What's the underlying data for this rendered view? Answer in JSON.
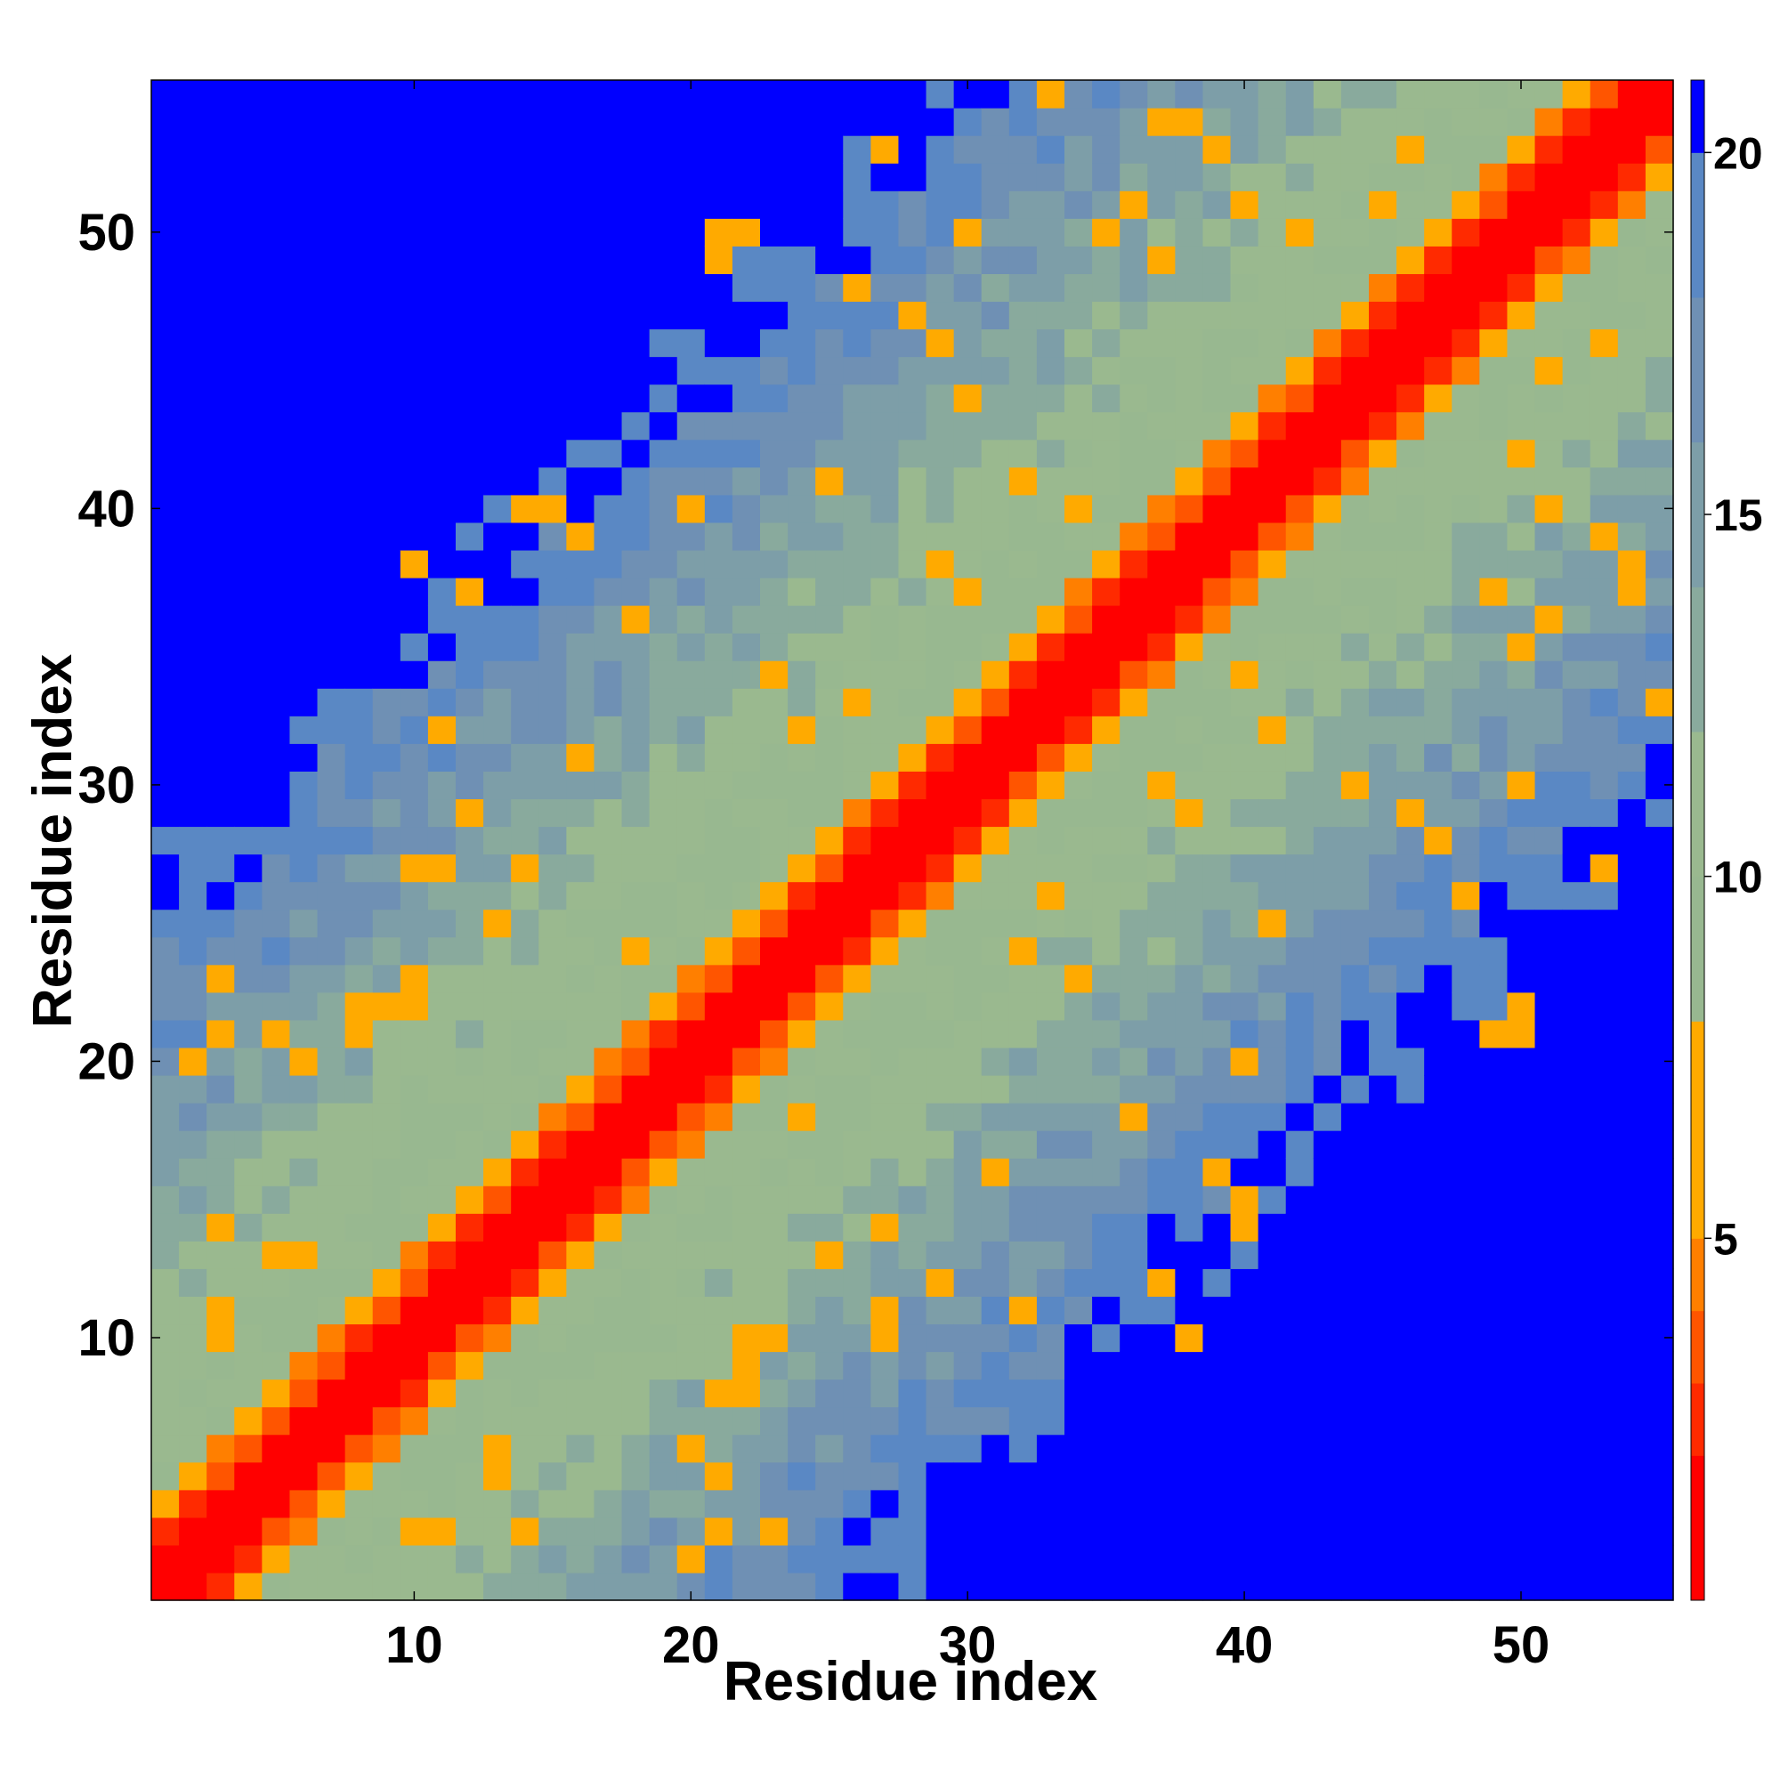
{
  "chart_data": {
    "type": "heatmap",
    "title": "",
    "xlabel": "Residue index",
    "ylabel": "Residue index",
    "n_residues": 55,
    "xlim": [
      0.5,
      55.5
    ],
    "ylim": [
      0.5,
      55.5
    ],
    "x_ticks": [
      10,
      20,
      30,
      40,
      50
    ],
    "y_ticks": [
      10,
      20,
      30,
      40,
      50
    ],
    "x_tick_labels": [
      "10",
      "20",
      "30",
      "40",
      "50"
    ],
    "y_tick_labels": [
      "10",
      "20",
      "30",
      "40",
      "50"
    ],
    "value_note": "Inter-residue distance map; values clipped at 21 (blue = 21 and above). Values estimated from the color scale.",
    "colorbar": {
      "range": [
        0,
        21
      ],
      "ticks": [
        5,
        10,
        15,
        20
      ],
      "tick_labels": [
        "5",
        "10",
        "15",
        "20"
      ],
      "colors": [
        "#ff0000",
        "#ff2a00",
        "#ff5500",
        "#ff7f00",
        "#ffaa00",
        "#98b890",
        "#9ab98f",
        "#89aa9d",
        "#7d9ea8",
        "#6f90b4",
        "#5a88c4",
        "#0000ff"
      ],
      "boundaries": [
        0,
        2,
        3,
        4,
        5,
        8,
        10,
        12,
        14,
        16,
        18,
        20,
        21
      ]
    },
    "grid": false,
    "legend": "colorbar at right"
  }
}
